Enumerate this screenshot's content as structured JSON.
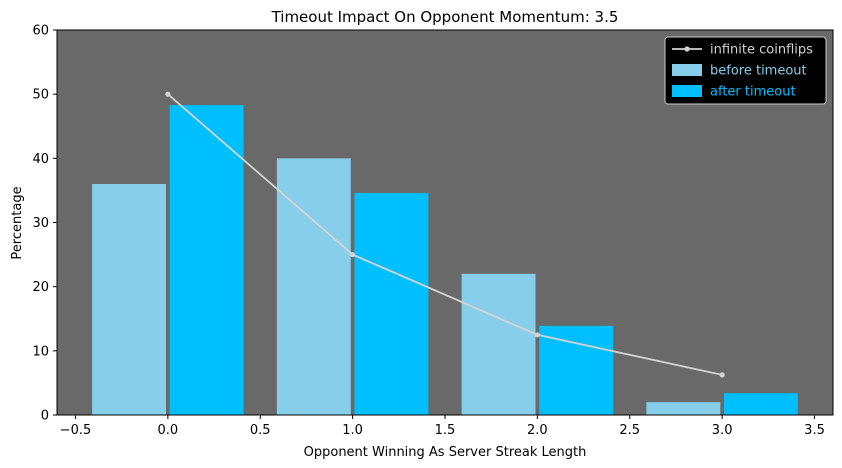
{
  "chart_data": {
    "type": "bar",
    "title": "Timeout Impact On Opponent Momentum: 3.5",
    "xlabel": "Opponent Winning As Server Streak Length",
    "ylabel": "Percentage",
    "xlim": [
      -0.6,
      3.6
    ],
    "ylim": [
      0,
      60
    ],
    "xticks": [
      -0.5,
      0.0,
      0.5,
      1.0,
      1.5,
      2.0,
      2.5,
      3.0,
      3.5
    ],
    "xtick_labels": [
      "−0.5",
      "0.0",
      "0.5",
      "1.0",
      "1.5",
      "2.0",
      "2.5",
      "3.0",
      "3.5"
    ],
    "yticks": [
      0,
      10,
      20,
      30,
      40,
      50,
      60
    ],
    "ytick_labels": [
      "0",
      "10",
      "20",
      "30",
      "40",
      "50",
      "60"
    ],
    "grid": false,
    "background": "#696969",
    "legend_position": "top-right",
    "series": [
      {
        "name": "infinite coinflips",
        "kind": "line",
        "color": "#d3d3d3",
        "x": [
          0,
          1,
          2,
          3
        ],
        "values": [
          50,
          25,
          12.5,
          6.25
        ]
      },
      {
        "name": "before timeout",
        "kind": "bar",
        "color": "#87ceeb",
        "x": [
          -0.21,
          0.79,
          1.79,
          2.79
        ],
        "width": 0.4,
        "values": [
          36,
          40,
          22,
          2
        ]
      },
      {
        "name": "after timeout",
        "kind": "bar",
        "color": "#00bfff",
        "x": [
          0.21,
          1.21,
          2.21,
          3.21
        ],
        "width": 0.4,
        "values": [
          48.3,
          34.6,
          13.9,
          3.4
        ]
      }
    ]
  }
}
